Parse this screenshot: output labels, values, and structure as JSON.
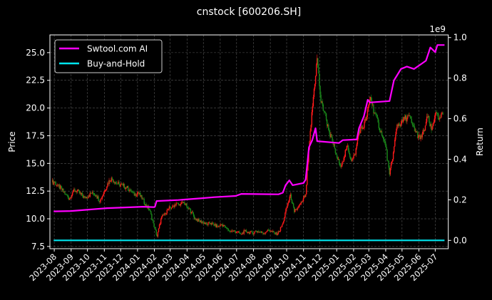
{
  "chart_data": {
    "type": "candlestick+line",
    "title": "cnstock [600206.SH]",
    "ylabel_left": "Price",
    "ylabel_right": "Return",
    "right_axis_offset_text": "1e9",
    "xlim": [
      "2023-07-24",
      "2025-07-25"
    ],
    "ylim_left": [
      7.3,
      26.6
    ],
    "ylim_right": [
      -0.041,
      1.013
    ],
    "grid": true,
    "legend_placement": "upper-left",
    "x_ticks": [
      "2023-08",
      "2023-09",
      "2023-10",
      "2023-11",
      "2023-12",
      "2024-01",
      "2024-02",
      "2024-03",
      "2024-04",
      "2024-05",
      "2024-06",
      "2024-07",
      "2024-08",
      "2024-09",
      "2024-10",
      "2024-11",
      "2024-12",
      "2025-01",
      "2025-02",
      "2025-03",
      "2025-04",
      "2025-05",
      "2025-06",
      "2025-07"
    ],
    "y_ticks_left": [
      "7.5",
      "10.0",
      "12.5",
      "15.0",
      "17.5",
      "20.0",
      "22.5",
      "25.0"
    ],
    "y_ticks_right": [
      "0.0",
      "0.2",
      "0.4",
      "0.6",
      "0.8",
      "1.0"
    ],
    "colors": {
      "up": "#ff1a1a",
      "down": "#1a8a1a",
      "strategy": "#ff00ff",
      "buy_hold": "#00e5ee",
      "grid": "#555555"
    },
    "price_weekly_close": [
      [
        "2023-08-01",
        13.3
      ],
      [
        "2023-08-08",
        13.0
      ],
      [
        "2023-08-15",
        12.6
      ],
      [
        "2023-08-22",
        12.2
      ],
      [
        "2023-08-29",
        11.8
      ],
      [
        "2023-09-05",
        12.6
      ],
      [
        "2023-09-12",
        12.5
      ],
      [
        "2023-09-19",
        12.2
      ],
      [
        "2023-09-26",
        11.9
      ],
      [
        "2023-10-03",
        12.1
      ],
      [
        "2023-10-10",
        12.4
      ],
      [
        "2023-10-17",
        12.1
      ],
      [
        "2023-10-24",
        11.6
      ],
      [
        "2023-10-31",
        12.4
      ],
      [
        "2023-11-07",
        13.2
      ],
      [
        "2023-11-14",
        13.7
      ],
      [
        "2023-11-21",
        13.3
      ],
      [
        "2023-11-28",
        13.1
      ],
      [
        "2023-12-05",
        13.0
      ],
      [
        "2023-12-12",
        12.8
      ],
      [
        "2023-12-19",
        12.6
      ],
      [
        "2023-12-26",
        12.1
      ],
      [
        "2024-01-02",
        12.4
      ],
      [
        "2024-01-09",
        11.8
      ],
      [
        "2024-01-16",
        11.3
      ],
      [
        "2024-01-23",
        10.8
      ],
      [
        "2024-01-30",
        9.6
      ],
      [
        "2024-02-06",
        8.4
      ],
      [
        "2024-02-13",
        10.0
      ],
      [
        "2024-02-20",
        10.5
      ],
      [
        "2024-02-27",
        10.9
      ],
      [
        "2024-03-05",
        11.1
      ],
      [
        "2024-03-12",
        11.4
      ],
      [
        "2024-03-19",
        11.2
      ],
      [
        "2024-03-26",
        11.5
      ],
      [
        "2024-04-02",
        11.0
      ],
      [
        "2024-04-09",
        10.6
      ],
      [
        "2024-04-16",
        10.0
      ],
      [
        "2024-04-23",
        9.8
      ],
      [
        "2024-04-30",
        9.7
      ],
      [
        "2024-05-07",
        9.5
      ],
      [
        "2024-05-14",
        9.6
      ],
      [
        "2024-05-21",
        9.4
      ],
      [
        "2024-05-28",
        9.3
      ],
      [
        "2024-06-04",
        9.5
      ],
      [
        "2024-06-11",
        9.2
      ],
      [
        "2024-06-18",
        8.9
      ],
      [
        "2024-06-25",
        8.9
      ],
      [
        "2024-07-02",
        8.8
      ],
      [
        "2024-07-09",
        8.6
      ],
      [
        "2024-07-16",
        8.9
      ],
      [
        "2024-07-23",
        8.8
      ],
      [
        "2024-07-30",
        8.7
      ],
      [
        "2024-08-06",
        8.9
      ],
      [
        "2024-08-13",
        8.8
      ],
      [
        "2024-08-20",
        8.7
      ],
      [
        "2024-08-27",
        9.0
      ],
      [
        "2024-09-03",
        8.9
      ],
      [
        "2024-09-10",
        8.6
      ],
      [
        "2024-09-17",
        8.8
      ],
      [
        "2024-09-24",
        9.6
      ],
      [
        "2024-10-01",
        11.0
      ],
      [
        "2024-10-08",
        12.2
      ],
      [
        "2024-10-15",
        10.6
      ],
      [
        "2024-10-22",
        11.0
      ],
      [
        "2024-10-29",
        11.5
      ],
      [
        "2024-11-05",
        12.2
      ],
      [
        "2024-11-12",
        17.0
      ],
      [
        "2024-11-19",
        21.0
      ],
      [
        "2024-11-26",
        24.5
      ],
      [
        "2024-12-03",
        20.5
      ],
      [
        "2024-12-10",
        19.6
      ],
      [
        "2024-12-17",
        18.0
      ],
      [
        "2024-12-24",
        17.0
      ],
      [
        "2024-12-31",
        15.8
      ],
      [
        "2025-01-07",
        14.8
      ],
      [
        "2025-01-14",
        15.5
      ],
      [
        "2025-01-21",
        16.6
      ],
      [
        "2025-01-28",
        15.2
      ],
      [
        "2025-02-04",
        15.8
      ],
      [
        "2025-02-11",
        18.0
      ],
      [
        "2025-02-18",
        18.2
      ],
      [
        "2025-02-25",
        19.2
      ],
      [
        "2025-03-04",
        21.0
      ],
      [
        "2025-03-11",
        19.6
      ],
      [
        "2025-03-18",
        18.7
      ],
      [
        "2025-03-25",
        17.5
      ],
      [
        "2025-04-01",
        16.5
      ],
      [
        "2025-04-08",
        14.0
      ],
      [
        "2025-04-15",
        16.0
      ],
      [
        "2025-04-22",
        18.5
      ],
      [
        "2025-04-29",
        18.6
      ],
      [
        "2025-05-06",
        19.0
      ],
      [
        "2025-05-13",
        19.3
      ],
      [
        "2025-05-20",
        18.5
      ],
      [
        "2025-05-27",
        17.8
      ],
      [
        "2025-06-03",
        17.2
      ],
      [
        "2025-06-10",
        17.9
      ],
      [
        "2025-06-17",
        19.2
      ],
      [
        "2025-06-24",
        18.0
      ],
      [
        "2025-07-01",
        19.5
      ],
      [
        "2025-07-08",
        19.0
      ],
      [
        "2025-07-15",
        19.4
      ]
    ],
    "series": [
      {
        "name": "Swtool.com AI",
        "axis": "right",
        "points": [
          [
            "2023-07-31",
            0.143
          ],
          [
            "2023-09-01",
            0.145
          ],
          [
            "2023-11-06",
            0.159
          ],
          [
            "2024-01-11",
            0.166
          ],
          [
            "2024-01-31",
            0.164
          ],
          [
            "2024-02-02",
            0.166
          ],
          [
            "2024-02-05",
            0.194
          ],
          [
            "2024-03-16",
            0.199
          ],
          [
            "2024-04-25",
            0.207
          ],
          [
            "2024-05-21",
            0.213
          ],
          [
            "2024-06-29",
            0.219
          ],
          [
            "2024-07-10",
            0.229
          ],
          [
            "2024-09-16",
            0.227
          ],
          [
            "2024-09-24",
            0.235
          ],
          [
            "2024-09-29",
            0.272
          ],
          [
            "2024-10-06",
            0.296
          ],
          [
            "2024-10-12",
            0.272
          ],
          [
            "2024-11-01",
            0.283
          ],
          [
            "2024-11-05",
            0.3
          ],
          [
            "2024-11-08",
            0.377
          ],
          [
            "2024-11-11",
            0.459
          ],
          [
            "2024-11-17",
            0.494
          ],
          [
            "2024-11-23",
            0.553
          ],
          [
            "2024-11-26",
            0.489
          ],
          [
            "2025-01-05",
            0.48
          ],
          [
            "2025-01-12",
            0.494
          ],
          [
            "2025-02-07",
            0.498
          ],
          [
            "2025-02-11",
            0.553
          ],
          [
            "2025-02-20",
            0.612
          ],
          [
            "2025-02-27",
            0.693
          ],
          [
            "2025-03-03",
            0.68
          ],
          [
            "2025-04-08",
            0.687
          ],
          [
            "2025-04-16",
            0.788
          ],
          [
            "2025-04-29",
            0.845
          ],
          [
            "2025-05-10",
            0.857
          ],
          [
            "2025-05-23",
            0.845
          ],
          [
            "2025-06-05",
            0.869
          ],
          [
            "2025-06-14",
            0.886
          ],
          [
            "2025-06-22",
            0.951
          ],
          [
            "2025-07-01",
            0.928
          ],
          [
            "2025-07-05",
            0.963
          ],
          [
            "2025-07-18",
            0.963
          ]
        ]
      },
      {
        "name": "Buy-and-Hold",
        "axis": "right",
        "points": [
          [
            "2023-07-31",
            0.0
          ],
          [
            "2025-07-18",
            0.0
          ]
        ]
      }
    ]
  }
}
